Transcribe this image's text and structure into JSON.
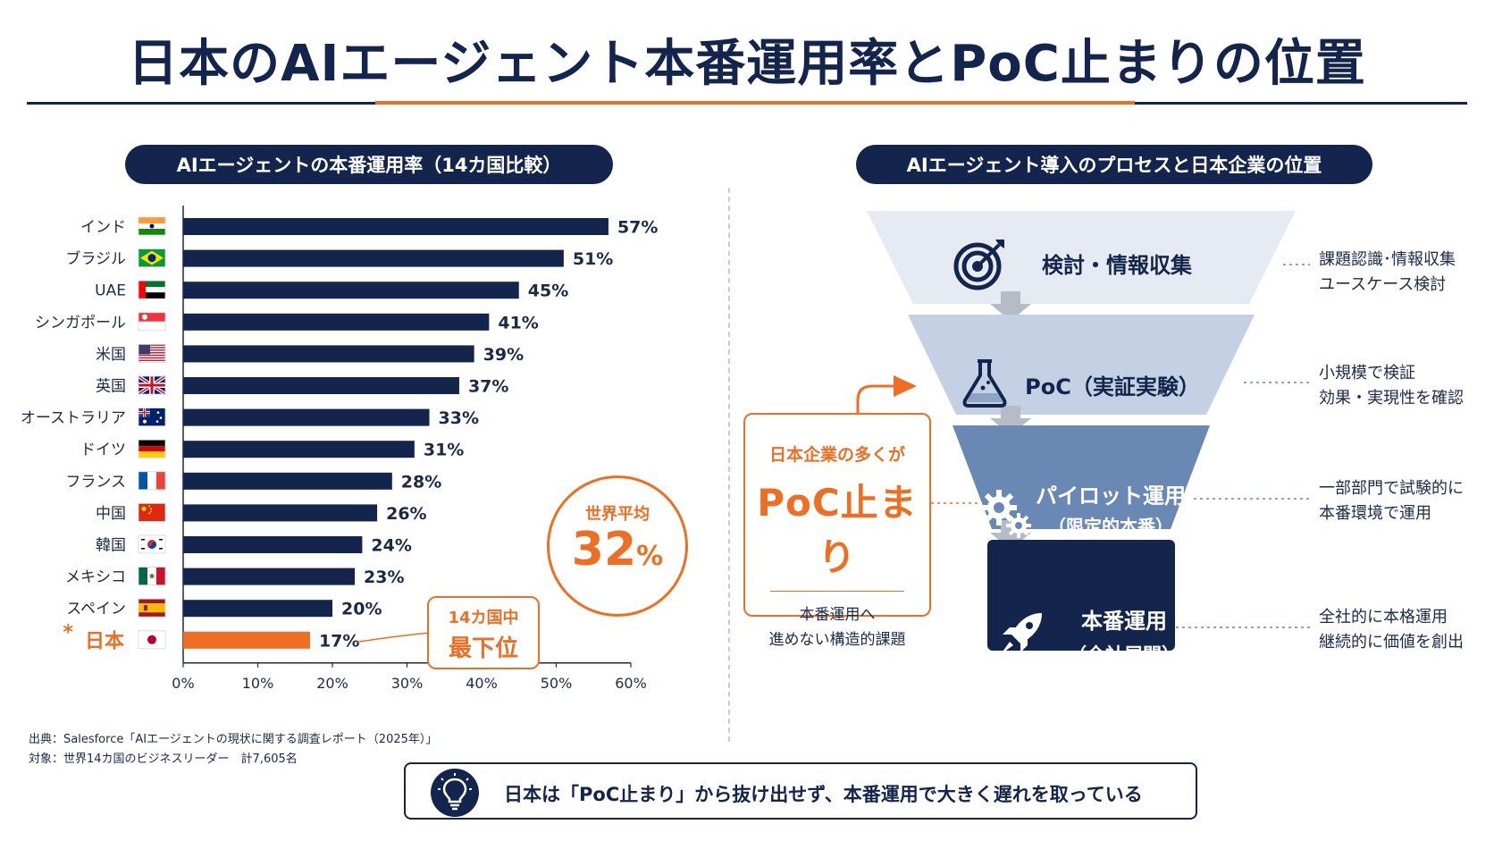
{
  "title": "日本のAIエージェント本番運用率とPoC止まりの位置",
  "left_panel": {
    "heading": "AIエージェントの本番運用率（14カ国比較）",
    "average": {
      "label": "世界平均",
      "value": "32",
      "unit": "%"
    },
    "rank_callout": {
      "line1": "14カ国中",
      "line2": "最下位"
    },
    "source_line1": "出典：Salesforce「AIエージェントの現状に関する調査レポート（2025年）」",
    "source_line2": "対象：世界14カ国のビジネスリーダー　計7,605名"
  },
  "chart_data": {
    "type": "bar",
    "orientation": "horizontal",
    "categories": [
      "インド",
      "ブラジル",
      "UAE",
      "シンガポール",
      "米国",
      "英国",
      "オーストラリア",
      "ドイツ",
      "フランス",
      "中国",
      "韓国",
      "メキシコ",
      "スペイン",
      "日本"
    ],
    "values": [
      57,
      51,
      45,
      41,
      39,
      37,
      33,
      31,
      28,
      26,
      24,
      23,
      20,
      17
    ],
    "value_labels": [
      "57%",
      "51%",
      "45%",
      "41%",
      "39%",
      "37%",
      "33%",
      "31%",
      "28%",
      "26%",
      "24%",
      "23%",
      "20%",
      "17%"
    ],
    "highlight_index": 13,
    "highlight_marker": "*",
    "xlim": [
      0,
      60
    ],
    "xticks": [
      0,
      10,
      20,
      30,
      40,
      50,
      60
    ],
    "xtick_labels": [
      "0%",
      "10%",
      "20%",
      "30%",
      "40%",
      "50%",
      "60%"
    ],
    "flags": [
      "india",
      "brazil",
      "uae",
      "singapore",
      "usa",
      "uk",
      "australia",
      "germany",
      "france",
      "china",
      "korea",
      "mexico",
      "spain",
      "japan"
    ],
    "colors": {
      "bar": "#13244d",
      "highlight": "#ee6f23",
      "axis": "#1b2a4a"
    },
    "grid": false
  },
  "right_panel": {
    "heading": "AIエージェント導入のプロセスと日本企業の位置",
    "stages": [
      {
        "label": "検討・情報収集",
        "sub": "",
        "icon": "target-icon",
        "desc1": "課題認識･情報収集",
        "desc2": "ユースケース検討"
      },
      {
        "label": "PoC（実証実験）",
        "sub": "",
        "icon": "flask-icon",
        "desc1": "小規模で検証",
        "desc2": "効果・実現性を確認"
      },
      {
        "label": "パイロット運用",
        "sub": "（限定的本番）",
        "icon": "gears-icon",
        "desc1": "一部部門で試験的に",
        "desc2": "本番環境で運用"
      },
      {
        "label": "本番運用",
        "sub": "（全社展開）",
        "icon": "rocket-icon",
        "desc1": "全社的に本格運用",
        "desc2": "継続的に価値を創出"
      }
    ],
    "stage_colors": [
      "#e6ebf3",
      "#c4d0e3",
      "#6a88b4",
      "#13244d"
    ],
    "callout": {
      "line1": "日本企業の多くが",
      "line2": "PoC止まり",
      "line3": "本番運用へ",
      "line4": "進めない構造的課題"
    }
  },
  "banner": {
    "text": "日本は「PoC止まり」から抜け出せず、本番運用で大きく遅れを取っている",
    "icon": "lightbulb-icon"
  },
  "colors": {
    "navy": "#13244d",
    "accent": "#ee6f23"
  }
}
